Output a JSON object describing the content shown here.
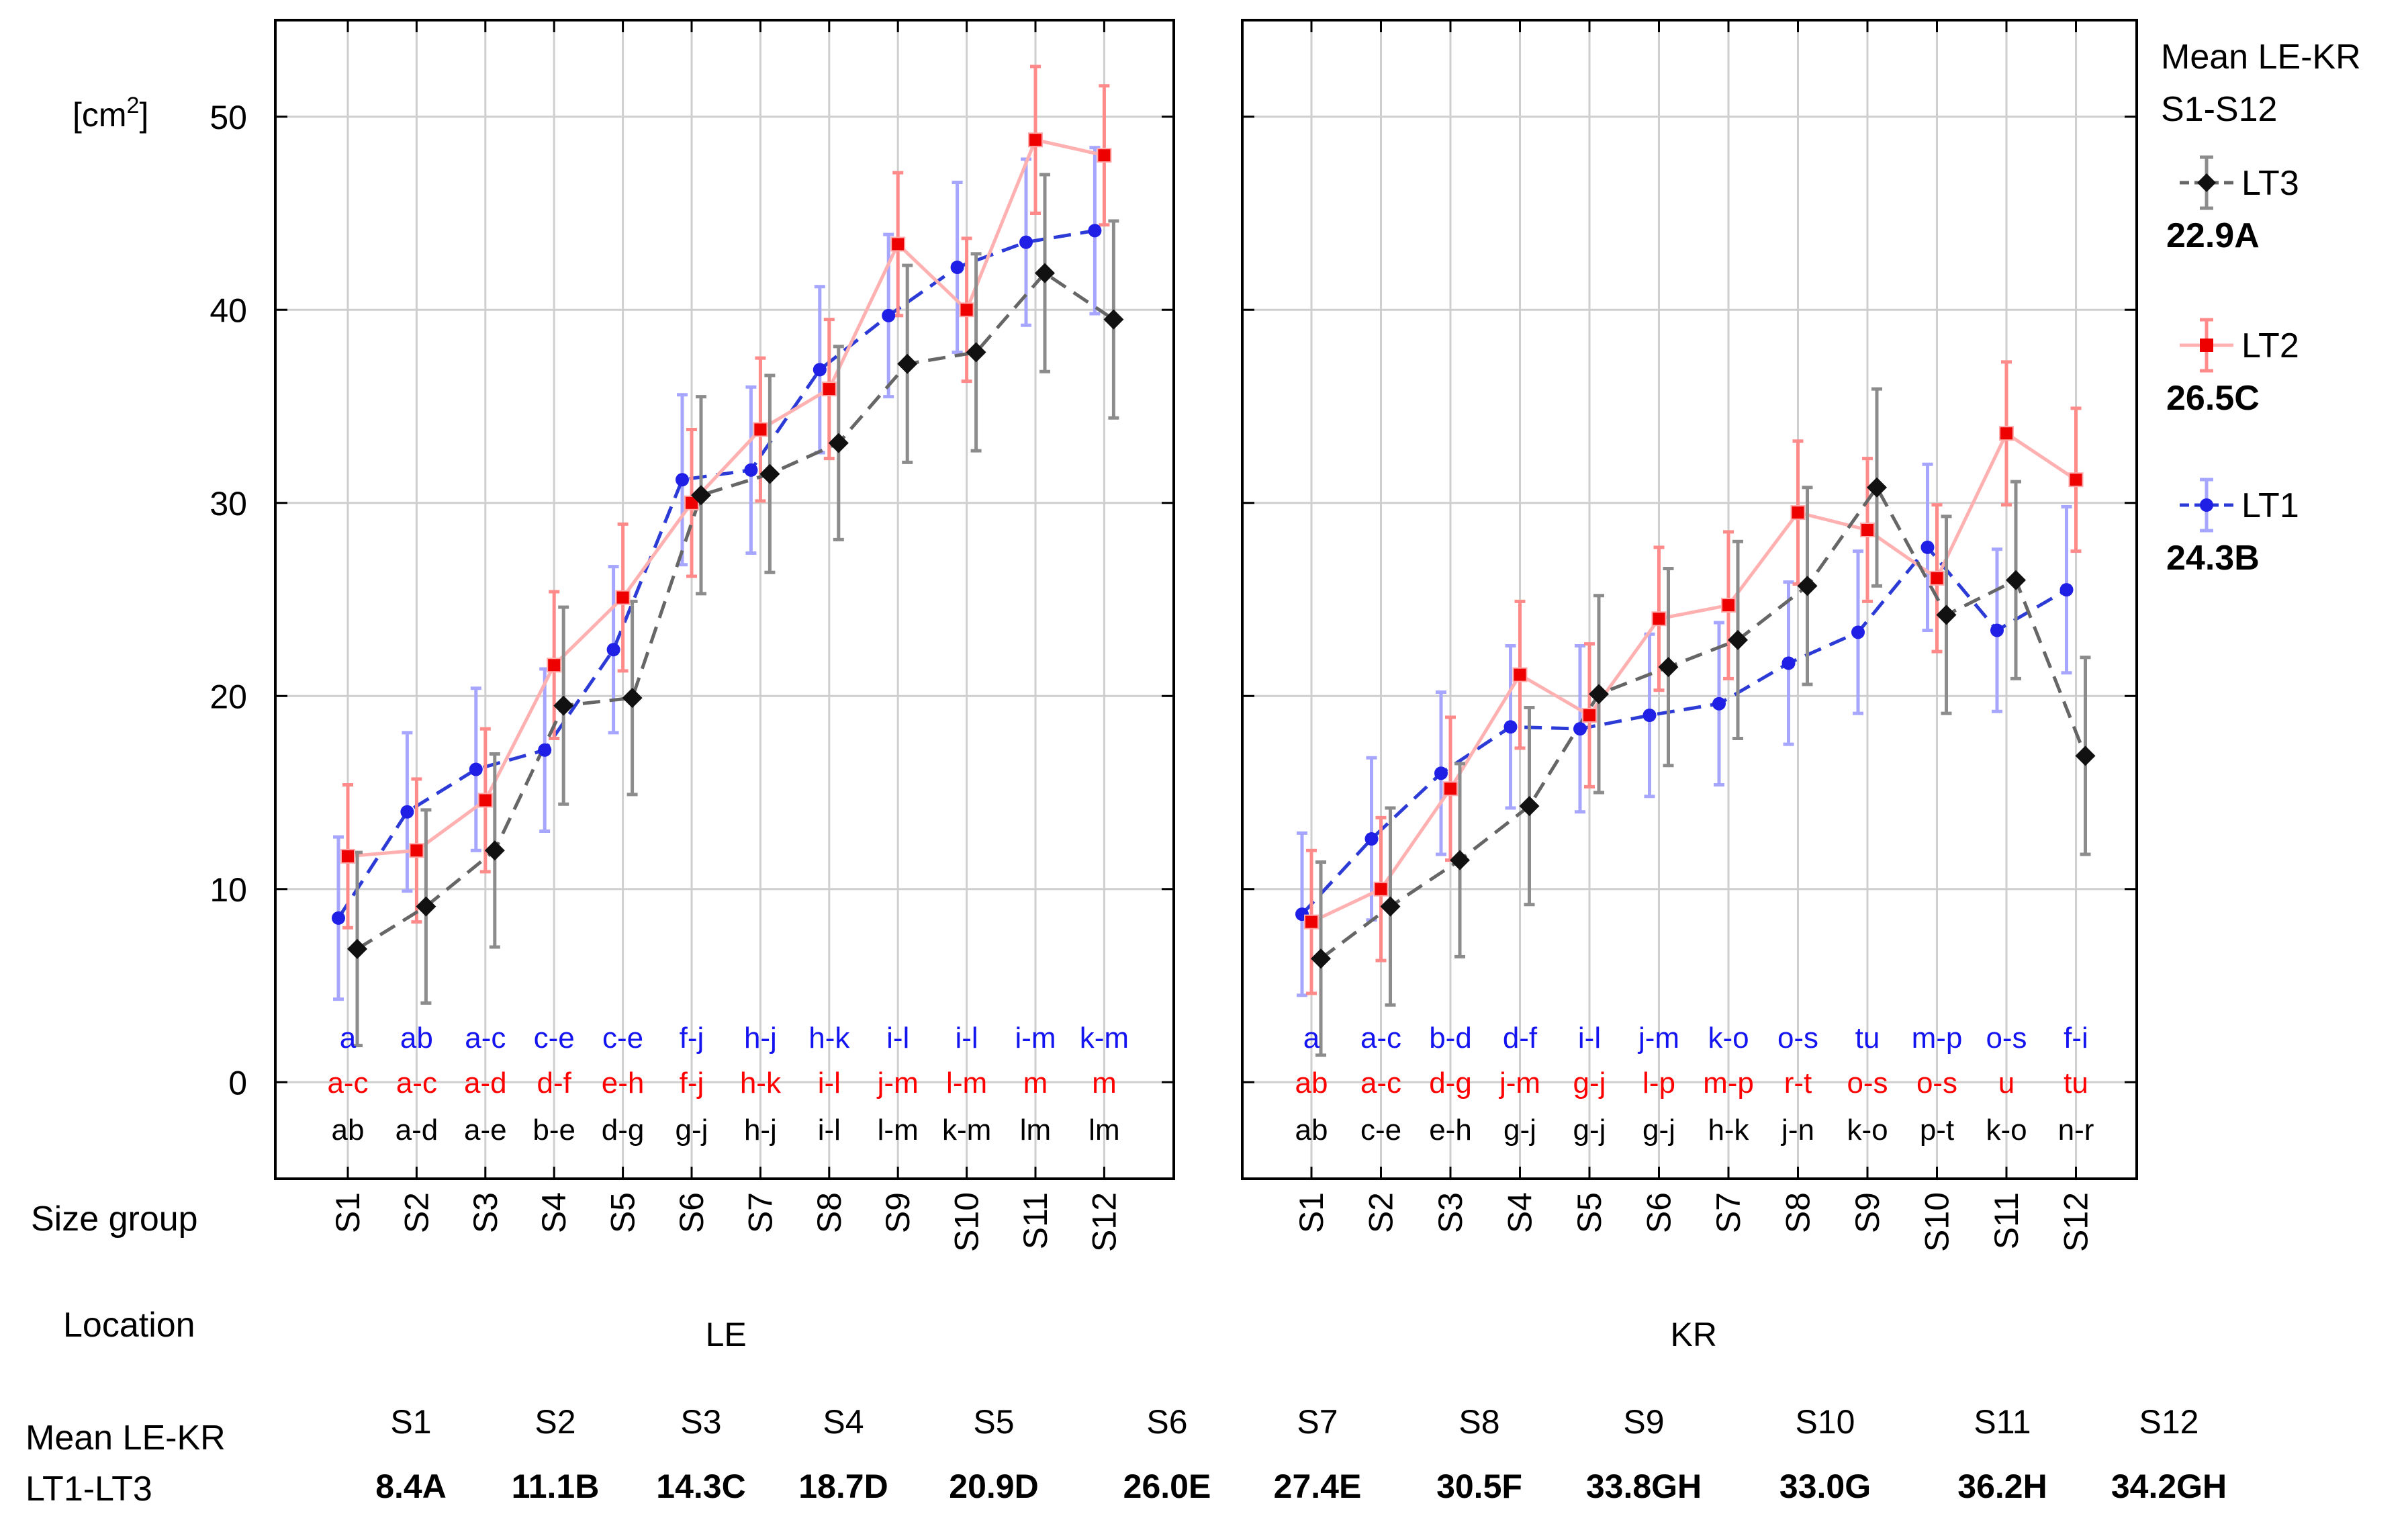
{
  "chart_data": {
    "type": "line",
    "ylabel": "[cm2]",
    "ylabel_base": "[cm",
    "ylabel_sup": "2",
    "ylabel_close": "]",
    "ylim": [
      -5,
      55
    ],
    "yticks": [
      0,
      10,
      20,
      30,
      40,
      50
    ],
    "categories": [
      "S1",
      "S2",
      "S3",
      "S4",
      "S5",
      "S6",
      "S7",
      "S8",
      "S9",
      "S10",
      "S11",
      "S12"
    ],
    "row_labels": {
      "size_group": "Size group",
      "location": "Location",
      "mean_line1": "Mean LE-KR",
      "mean_line2": "LT1-LT3"
    },
    "legend": {
      "title_line1": "Mean LE-KR",
      "title_line2": "S1-S12",
      "entries": [
        {
          "name": "LT3",
          "mean": "22.9A",
          "color": "#000000"
        },
        {
          "name": "LT2",
          "mean": "26.5C",
          "color": "#ff0000"
        },
        {
          "name": "LT1",
          "mean": "24.3B",
          "color": "#0000ff"
        }
      ]
    },
    "panels": [
      {
        "location": "LE",
        "series": [
          {
            "name": "LT1",
            "color": "#2020ee",
            "values": [
              8.5,
              14.0,
              16.2,
              17.2,
              22.4,
              31.2,
              31.7,
              36.9,
              39.7,
              42.2,
              43.5,
              44.1
            ],
            "err": [
              4.2,
              4.1,
              4.2,
              4.2,
              4.3,
              4.4,
              4.3,
              4.3,
              4.2,
              4.4,
              4.3,
              4.3
            ],
            "letters": [
              "a",
              "ab",
              "a-c",
              "c-e",
              "c-e",
              "f-j",
              "h-j",
              "h-k",
              "i-l",
              "i-l",
              "i-m",
              "k-m"
            ]
          },
          {
            "name": "LT2",
            "color": "#ff0000",
            "values": [
              11.7,
              12.0,
              14.6,
              21.6,
              25.1,
              30.0,
              33.8,
              35.9,
              43.4,
              40.0,
              48.8,
              48.0
            ],
            "err": [
              3.7,
              3.7,
              3.7,
              3.8,
              3.8,
              3.8,
              3.7,
              3.6,
              3.7,
              3.7,
              3.8,
              3.6
            ],
            "letters": [
              "a-c",
              "a-c",
              "a-d",
              "d-f",
              "e-h",
              "f-j",
              "h-k",
              "i-l",
              "j-m",
              "l-m",
              "m",
              "m"
            ]
          },
          {
            "name": "LT3",
            "color": "#000000",
            "values": [
              6.9,
              9.1,
              12.0,
              19.5,
              19.9,
              30.4,
              31.5,
              33.1,
              37.2,
              37.8,
              41.9,
              39.5
            ],
            "err": [
              5.0,
              5.0,
              5.0,
              5.1,
              5.0,
              5.1,
              5.1,
              5.0,
              5.1,
              5.1,
              5.1,
              5.1
            ],
            "letters": [
              "ab",
              "a-d",
              "a-e",
              "b-e",
              "d-g",
              "g-j",
              "h-j",
              "i-l",
              "l-m",
              "k-m",
              "lm",
              "lm"
            ]
          }
        ]
      },
      {
        "location": "KR",
        "series": [
          {
            "name": "LT1",
            "color": "#2020ee",
            "values": [
              8.7,
              12.6,
              16.0,
              18.4,
              18.3,
              19.0,
              19.6,
              21.7,
              23.3,
              27.7,
              23.4,
              25.5
            ],
            "err": [
              4.2,
              4.2,
              4.2,
              4.2,
              4.3,
              4.2,
              4.2,
              4.2,
              4.2,
              4.3,
              4.2,
              4.3
            ],
            "letters": [
              "a",
              "a-c",
              "b-d",
              "d-f",
              "i-l",
              "j-m",
              "k-o",
              "o-s",
              "tu",
              "m-p",
              "o-s",
              "f-i"
            ]
          },
          {
            "name": "LT2",
            "color": "#ff0000",
            "values": [
              8.3,
              10.0,
              15.2,
              21.1,
              19.0,
              24.0,
              24.7,
              29.5,
              28.6,
              26.1,
              33.6,
              31.2
            ],
            "err": [
              3.7,
              3.7,
              3.7,
              3.8,
              3.7,
              3.7,
              3.8,
              3.7,
              3.7,
              3.8,
              3.7,
              3.7
            ],
            "letters": [
              "ab",
              "a-c",
              "d-g",
              "j-m",
              "g-j",
              "l-p",
              "m-p",
              "r-t",
              "o-s",
              "o-s",
              "u",
              "tu"
            ]
          },
          {
            "name": "LT3",
            "color": "#000000",
            "values": [
              6.4,
              9.1,
              11.5,
              14.3,
              20.1,
              21.5,
              22.9,
              25.7,
              30.8,
              24.2,
              26.0,
              16.9
            ],
            "err": [
              5.0,
              5.1,
              5.0,
              5.1,
              5.1,
              5.1,
              5.1,
              5.1,
              5.1,
              5.1,
              5.1,
              5.1
            ],
            "letters": [
              "ab",
              "c-e",
              "e-h",
              "g-j",
              "g-j",
              "g-j",
              "h-k",
              "j-n",
              "k-o",
              "p-t",
              "k-o",
              "n-r"
            ]
          }
        ]
      }
    ],
    "size_group_means": [
      {
        "group": "S1",
        "value": "8.4A"
      },
      {
        "group": "S2",
        "value": "11.1B"
      },
      {
        "group": "S3",
        "value": "14.3C"
      },
      {
        "group": "S4",
        "value": "18.7D"
      },
      {
        "group": "S5",
        "value": "20.9D"
      },
      {
        "group": "S6",
        "value": "26.0E"
      },
      {
        "group": "S7",
        "value": "27.4E"
      },
      {
        "group": "S8",
        "value": "30.5F"
      },
      {
        "group": "S9",
        "value": "33.8GH"
      },
      {
        "group": "S10",
        "value": "33.0G"
      },
      {
        "group": "S11",
        "value": "36.2H"
      },
      {
        "group": "S12",
        "value": "34.2GH"
      }
    ]
  }
}
